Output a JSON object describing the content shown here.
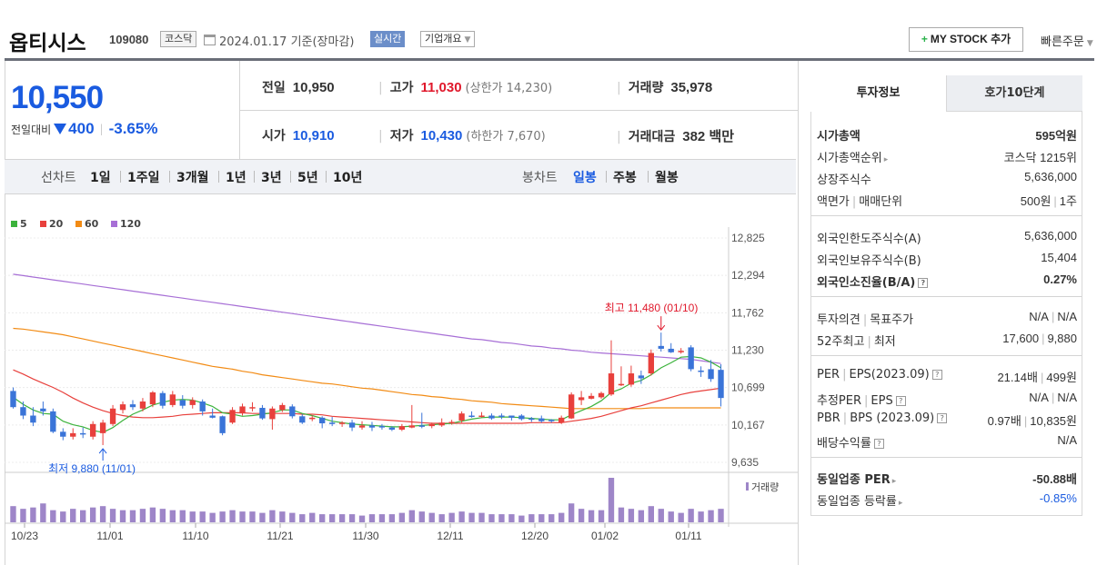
{
  "header": {
    "name": "옵티시스",
    "code": "109080",
    "market": "코스닥",
    "date": "2024.01.17 기준(장마감)",
    "realtime": "실시간",
    "overview": "기업개요",
    "mystock": "MY STOCK 추가",
    "quick_order": "빠른주문"
  },
  "price": {
    "current": "10,550",
    "change_label": "전일대비",
    "change_value": "400",
    "change_pct": "-3.65%"
  },
  "stats": {
    "prev_label": "전일",
    "prev": "10,950",
    "high_label": "고가",
    "high": "11,030",
    "upper": "(상한가 14,230)",
    "volume_label": "거래량",
    "volume": "35,978",
    "open_label": "시가",
    "open": "10,910",
    "low_label": "저가",
    "low": "10,430",
    "lower": "(하한가 7,670)",
    "amount_label": "거래대금",
    "amount": "382 백만"
  },
  "period": {
    "line_label": "선차트",
    "line_items": [
      "1일",
      "1주일",
      "3개월",
      "1년",
      "3년",
      "5년",
      "10년"
    ],
    "candle_label": "봉차트",
    "candle_items": [
      "일봉",
      "주봉",
      "월봉"
    ]
  },
  "chart_data": {
    "type": "candlestick",
    "legend": [
      "5",
      "20",
      "60",
      "120"
    ],
    "legend_colors": [
      "#3cb33c",
      "#e8403c",
      "#f28b14",
      "#a76fd6"
    ],
    "y_ticks": [
      "12,825",
      "12,294",
      "11,762",
      "11,230",
      "10,699",
      "10,167",
      "9,635"
    ],
    "y_range": [
      9635,
      12825
    ],
    "x_ticks": [
      "10/23",
      "11/01",
      "11/10",
      "11/21",
      "11/30",
      "12/11",
      "12/20",
      "01/02",
      "01/11"
    ],
    "max_label": "최고 11,480 (01/10)",
    "min_label": "최저 9,880 (11/01)",
    "volume_label": "거래량",
    "up_color": "#e8403c",
    "down_color": "#3a74d8",
    "candles": [
      [
        10650,
        10420,
        10700,
        10400
      ],
      [
        10420,
        10300,
        10500,
        10250
      ],
      [
        10300,
        10200,
        10420,
        10150
      ],
      [
        10400,
        10360,
        10500,
        10300
      ],
      [
        10360,
        10070,
        10400,
        10050
      ],
      [
        10070,
        10000,
        10120,
        9950
      ],
      [
        10000,
        10050,
        10120,
        9960
      ],
      [
        10050,
        10040,
        10130,
        9980
      ],
      [
        10000,
        10180,
        10220,
        9960
      ],
      [
        10050,
        10200,
        10240,
        9880
      ],
      [
        10180,
        10400,
        10450,
        10150
      ],
      [
        10380,
        10460,
        10500,
        10330
      ],
      [
        10460,
        10420,
        10520,
        10380
      ],
      [
        10400,
        10500,
        10550,
        10360
      ],
      [
        10460,
        10630,
        10650,
        10420
      ],
      [
        10620,
        10440,
        10650,
        10400
      ],
      [
        10450,
        10600,
        10650,
        10420
      ],
      [
        10520,
        10440,
        10590,
        10400
      ],
      [
        10450,
        10520,
        10560,
        10400
      ],
      [
        10500,
        10360,
        10530,
        10300
      ],
      [
        10300,
        10270,
        10400,
        10260
      ],
      [
        10290,
        10050,
        10300,
        10020
      ],
      [
        10200,
        10380,
        10420,
        10180
      ],
      [
        10330,
        10430,
        10470,
        10300
      ],
      [
        10410,
        10420,
        10490,
        10360
      ],
      [
        10410,
        10260,
        10450,
        10240
      ],
      [
        10250,
        10400,
        10430,
        10100
      ],
      [
        10380,
        10450,
        10480,
        10350
      ],
      [
        10430,
        10290,
        10460,
        10260
      ],
      [
        10290,
        10200,
        10320,
        10180
      ],
      [
        10250,
        10270,
        10300,
        10220
      ],
      [
        10270,
        10190,
        10290,
        10120
      ],
      [
        10200,
        10180,
        10280,
        10150
      ],
      [
        10180,
        10200,
        10220,
        10140
      ],
      [
        10200,
        10130,
        10240,
        10080
      ],
      [
        10130,
        10160,
        10220,
        10100
      ],
      [
        10160,
        10130,
        10210,
        10080
      ],
      [
        10150,
        10140,
        10180,
        10100
      ],
      [
        10130,
        10100,
        10150,
        10080
      ],
      [
        10100,
        10150,
        10180,
        10080
      ],
      [
        10130,
        10160,
        10450,
        10120
      ],
      [
        10160,
        10150,
        10340,
        10120
      ],
      [
        10150,
        10180,
        10200,
        10120
      ],
      [
        10160,
        10200,
        10260,
        10140
      ],
      [
        10200,
        10210,
        10240,
        10170
      ],
      [
        10230,
        10330,
        10360,
        10200
      ],
      [
        10300,
        10290,
        10360,
        10270
      ],
      [
        10290,
        10300,
        10350,
        10270
      ],
      [
        10300,
        10260,
        10330,
        10240
      ],
      [
        10300,
        10290,
        10330,
        10250
      ],
      [
        10300,
        10270,
        10300,
        10230
      ],
      [
        10300,
        10250,
        10320,
        10230
      ],
      [
        10260,
        10240,
        10280,
        10210
      ],
      [
        10260,
        10220,
        10300,
        10200
      ],
      [
        10240,
        10220,
        10250,
        10200
      ],
      [
        10200,
        10270,
        10300,
        10180
      ],
      [
        10260,
        10600,
        10630,
        10250
      ],
      [
        10520,
        10560,
        10650,
        10450
      ],
      [
        10540,
        10580,
        10620,
        10530
      ],
      [
        10560,
        10620,
        10640,
        10540
      ],
      [
        10600,
        10900,
        11370,
        10580
      ],
      [
        10730,
        10750,
        11000,
        10720
      ],
      [
        10740,
        10900,
        11010,
        10710
      ],
      [
        10870,
        10830,
        10940,
        10750
      ],
      [
        10900,
        11190,
        11240,
        10870
      ],
      [
        11290,
        11250,
        11480,
        11210
      ],
      [
        11250,
        11200,
        11330,
        11190
      ],
      [
        11200,
        11220,
        11260,
        11180
      ],
      [
        11270,
        10960,
        11300,
        10930
      ],
      [
        10940,
        10920,
        11000,
        10850
      ],
      [
        10960,
        10820,
        11090,
        10780
      ],
      [
        10950,
        10550,
        11030,
        10430
      ]
    ],
    "ma5": [
      10560,
      10460,
      10380,
      10330,
      10320,
      10220,
      10170,
      10140,
      10090,
      10060,
      10130,
      10230,
      10320,
      10380,
      10450,
      10490,
      10520,
      10530,
      10520,
      10480,
      10430,
      10340,
      10320,
      10290,
      10300,
      10320,
      10340,
      10380,
      10380,
      10330,
      10300,
      10260,
      10220,
      10200,
      10180,
      10170,
      10160,
      10150,
      10140,
      10140,
      10150,
      10160,
      10170,
      10180,
      10190,
      10220,
      10250,
      10270,
      10280,
      10280,
      10280,
      10270,
      10260,
      10250,
      10240,
      10240,
      10310,
      10370,
      10430,
      10510,
      10630,
      10680,
      10760,
      10800,
      10880,
      10980,
      11050,
      11130,
      11140,
      11120,
      11060,
      10980
    ],
    "ma20": [
      10950,
      10890,
      10820,
      10760,
      10700,
      10630,
      10550,
      10480,
      10420,
      10370,
      10330,
      10300,
      10280,
      10270,
      10270,
      10280,
      10290,
      10310,
      10320,
      10330,
      10340,
      10340,
      10340,
      10340,
      10330,
      10330,
      10330,
      10330,
      10330,
      10320,
      10320,
      10310,
      10290,
      10280,
      10270,
      10260,
      10250,
      10240,
      10230,
      10220,
      10210,
      10200,
      10190,
      10190,
      10190,
      10190,
      10190,
      10190,
      10190,
      10190,
      10190,
      10190,
      10200,
      10200,
      10200,
      10200,
      10220,
      10240,
      10260,
      10290,
      10330,
      10370,
      10410,
      10440,
      10480,
      10520,
      10560,
      10600,
      10630,
      10650,
      10670,
      10690
    ],
    "ma60": [
      11540,
      11530,
      11510,
      11490,
      11470,
      11450,
      11420,
      11390,
      11360,
      11330,
      11300,
      11270,
      11240,
      11210,
      11180,
      11150,
      11120,
      11090,
      11060,
      11030,
      11000,
      10980,
      10960,
      10930,
      10910,
      10880,
      10860,
      10840,
      10820,
      10800,
      10780,
      10760,
      10750,
      10730,
      10710,
      10690,
      10680,
      10660,
      10640,
      10620,
      10600,
      10590,
      10570,
      10560,
      10540,
      10530,
      10510,
      10500,
      10490,
      10470,
      10460,
      10450,
      10440,
      10430,
      10420,
      10410,
      10400,
      10400,
      10400,
      10400,
      10400,
      10400,
      10400,
      10400,
      10410,
      10410,
      10410,
      10410,
      10410,
      10410,
      10410,
      10410
    ],
    "ma120": [
      12310,
      12290,
      12270,
      12250,
      12230,
      12210,
      12190,
      12170,
      12150,
      12130,
      12110,
      12090,
      12070,
      12050,
      12030,
      12010,
      11990,
      11970,
      11950,
      11930,
      11910,
      11890,
      11870,
      11850,
      11830,
      11810,
      11790,
      11770,
      11750,
      11730,
      11710,
      11690,
      11670,
      11650,
      11630,
      11610,
      11590,
      11570,
      11550,
      11530,
      11510,
      11490,
      11470,
      11450,
      11430,
      11410,
      11390,
      11380,
      11360,
      11340,
      11330,
      11310,
      11290,
      11280,
      11260,
      11250,
      11230,
      11220,
      11200,
      11190,
      11180,
      11170,
      11160,
      11150,
      11140,
      11130,
      11120,
      11110,
      11100,
      11080,
      11060,
      11040
    ],
    "volume": [
      12,
      10,
      11,
      14,
      9,
      8,
      10,
      9,
      11,
      12,
      10,
      9,
      9,
      10,
      11,
      10,
      9,
      9,
      8,
      8,
      7,
      8,
      9,
      8,
      8,
      7,
      9,
      8,
      7,
      6,
      7,
      6,
      6,
      6,
      6,
      5,
      6,
      6,
      6,
      7,
      9,
      8,
      7,
      6,
      7,
      8,
      7,
      7,
      6,
      6,
      6,
      5,
      6,
      6,
      6,
      7,
      14,
      10,
      9,
      9,
      33,
      11,
      10,
      9,
      12,
      10,
      8,
      7,
      10,
      8,
      9,
      10
    ]
  },
  "tabs": [
    "투자정보",
    "호가10단계"
  ],
  "info": [
    {
      "k": "시가총액",
      "v": "595억원",
      "bold": true
    },
    {
      "k": "시가총액순위",
      "v": "코스닥 1215위",
      "arrow": true
    },
    {
      "k": "상장주식수",
      "v": "5,636,000"
    },
    {
      "k": "액면가",
      "k2": "매매단위",
      "v": "500원",
      "v2": "1주"
    },
    {
      "k": "외국인한도주식수(A)",
      "v": "5,636,000"
    },
    {
      "k": "외국인보유주식수(B)",
      "v": "15,404"
    },
    {
      "k": "외국인소진율(B/A)",
      "v": "0.27%",
      "bold": true,
      "help": true
    },
    {
      "k": "투자의견",
      "k2": "목표주가",
      "v": "N/A",
      "v2": "N/A"
    },
    {
      "k": "52주최고",
      "k2": "최저",
      "v": "17,600",
      "v2": "9,880"
    },
    {
      "k": "PER",
      "k2": "EPS(2023.09)",
      "v": "21.14배",
      "v2": "499원",
      "help": true
    },
    {
      "k": "추정PER",
      "k2": "EPS",
      "v": "N/A",
      "v2": "N/A",
      "help": true
    },
    {
      "k": "PBR",
      "k2": "BPS (2023.09)",
      "v": "0.97배",
      "v2": "10,835원",
      "help": true
    },
    {
      "k": "배당수익률",
      "v": "N/A",
      "help": true
    },
    {
      "k": "동일업종 PER",
      "v": "-50.88배",
      "bold": true,
      "arrow": true
    },
    {
      "k": "동일업종 등락률",
      "v": "-0.85%",
      "blue": true,
      "arrow": true
    }
  ]
}
